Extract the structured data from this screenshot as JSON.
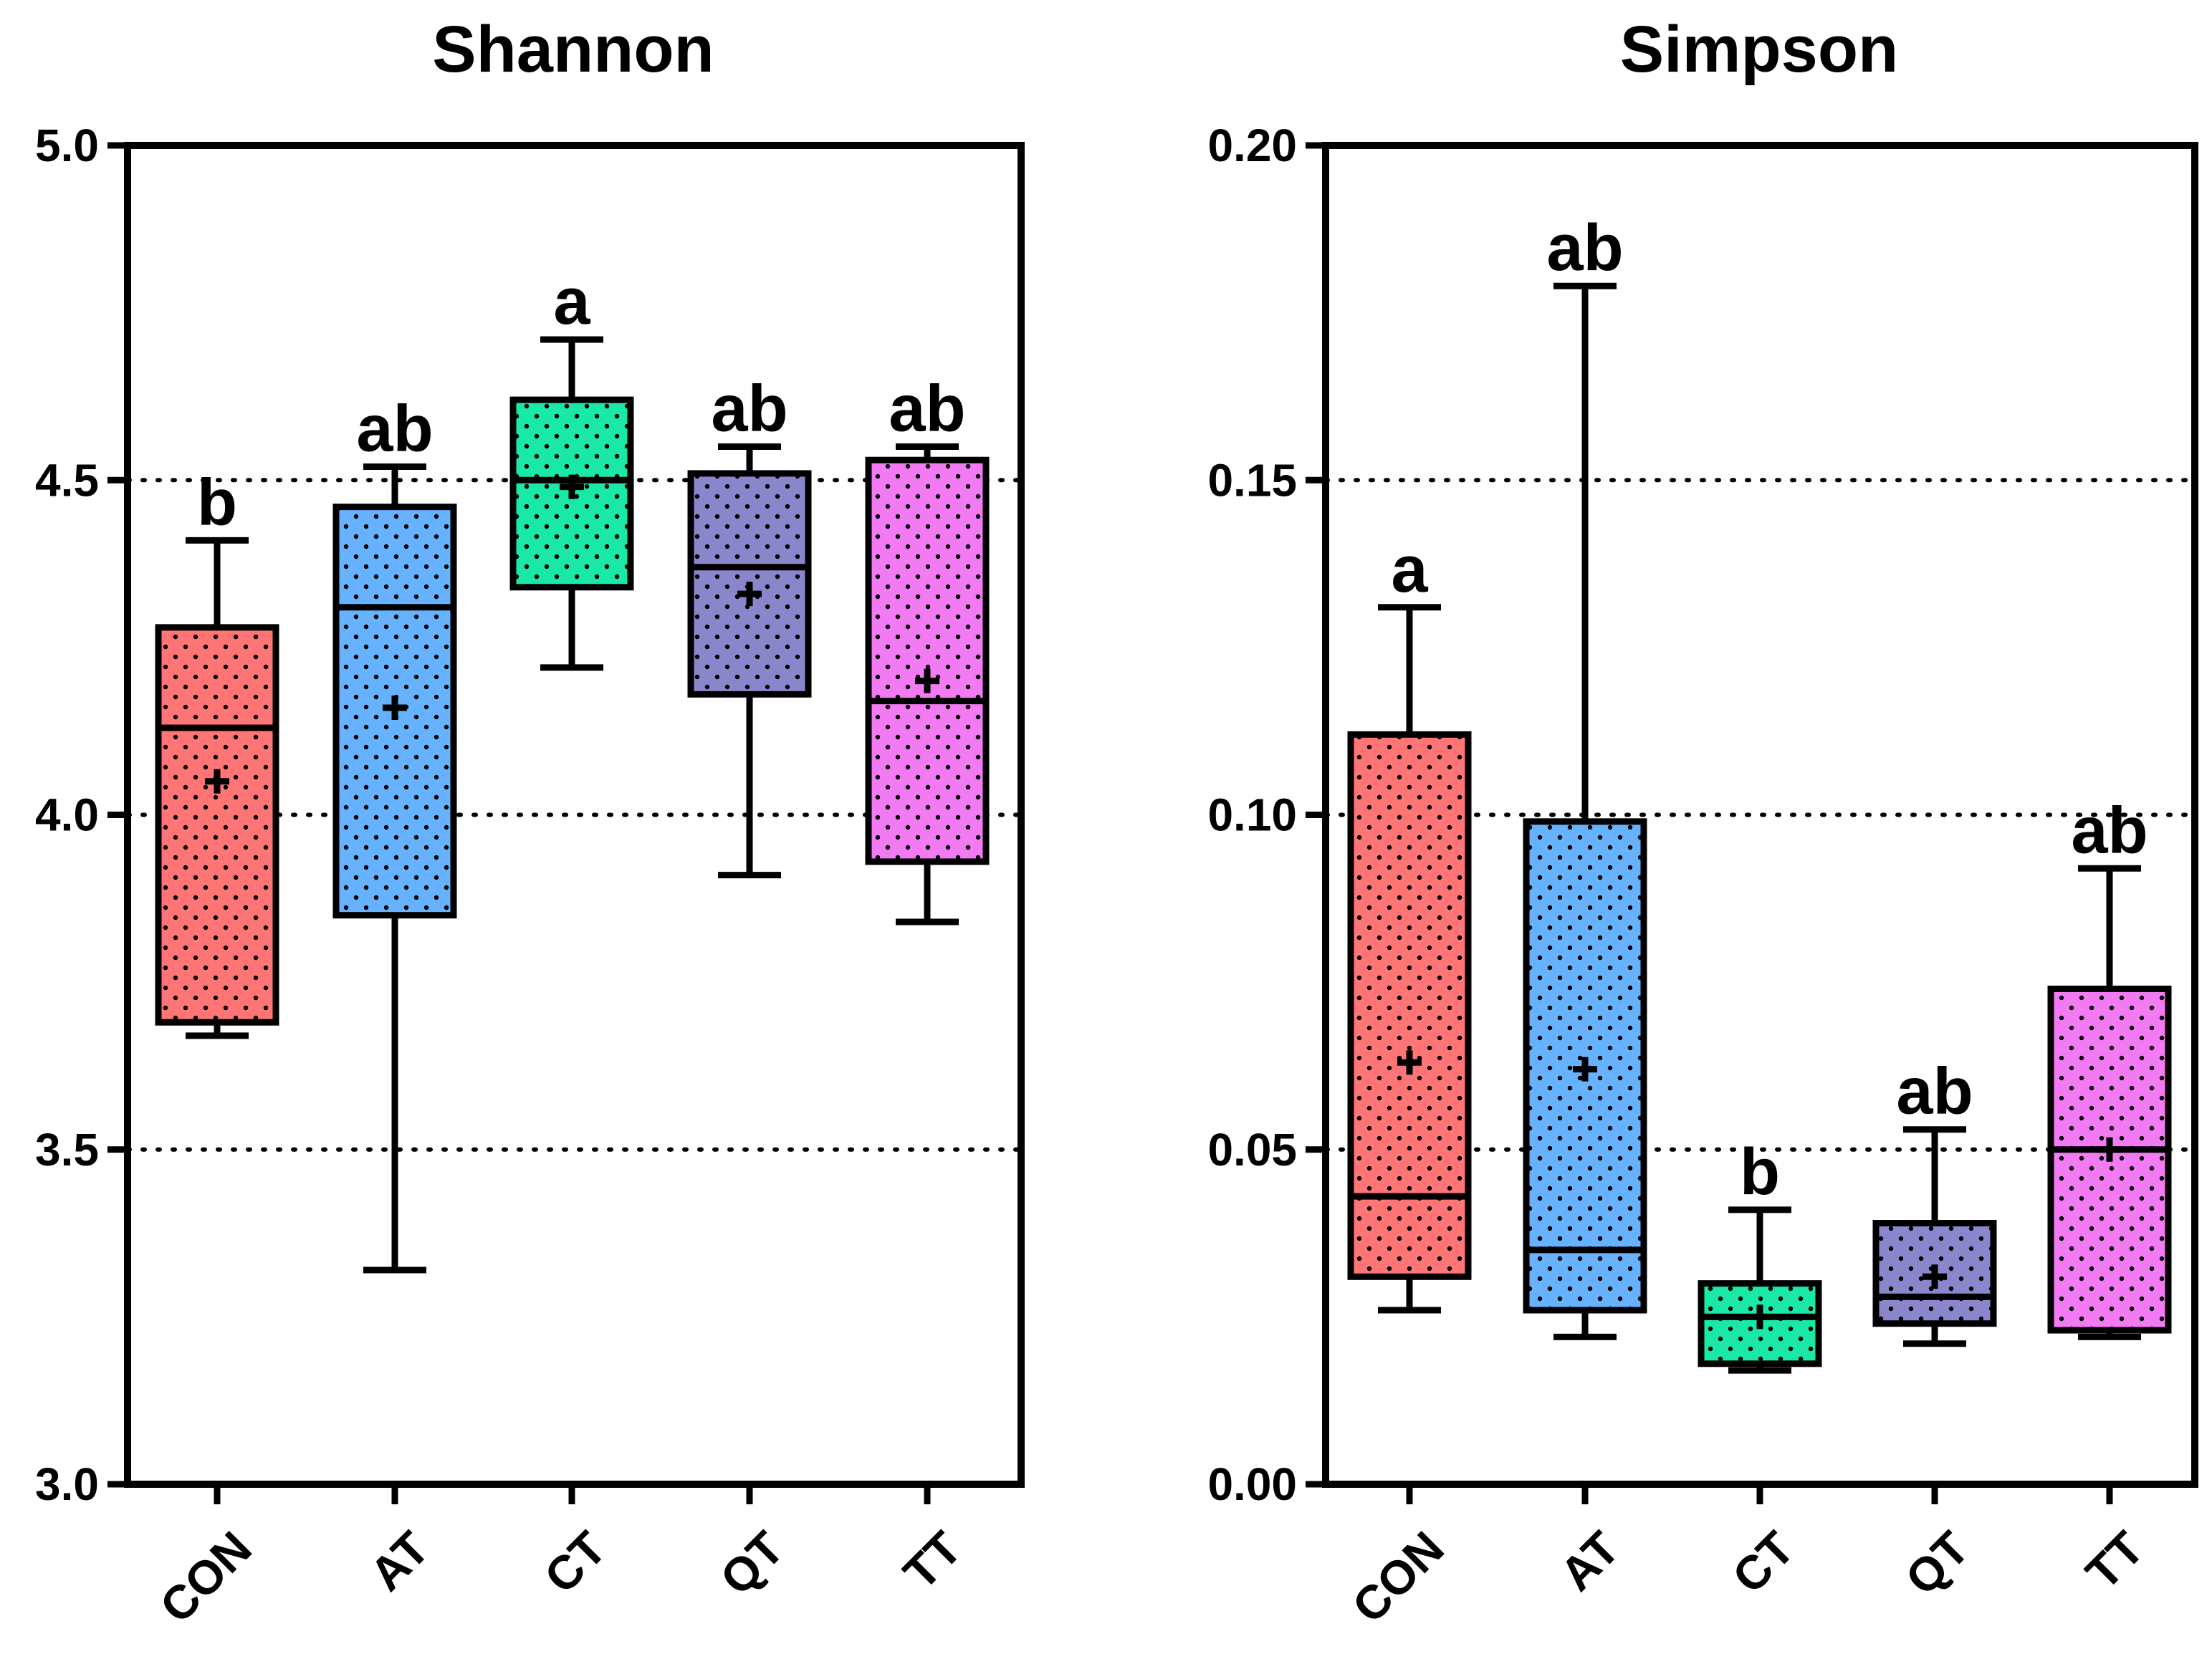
{
  "chart_data": [
    {
      "type": "box",
      "title": "Shannon",
      "xlabel": "",
      "ylabel": "",
      "ylim": [
        3.0,
        5.0
      ],
      "yticks": [
        "3.0",
        "3.5",
        "4.0",
        "4.5",
        "5.0"
      ],
      "ytick_values": [
        3.0,
        3.5,
        4.0,
        4.5,
        5.0
      ],
      "grid_lines": [
        3.5,
        4.0,
        4.5
      ],
      "categories": [
        "CON",
        "AT",
        "CT",
        "QT",
        "TT"
      ],
      "colors": [
        "#ff7474",
        "#66b2ff",
        "#19e8a6",
        "#8a86cc",
        "#f27af2"
      ],
      "boxes": [
        {
          "whisker_low": 3.67,
          "q1": 3.69,
          "median": 4.13,
          "q3": 4.28,
          "whisker_high": 4.41,
          "mean": 4.05,
          "significance": "b"
        },
        {
          "whisker_low": 3.32,
          "q1": 3.85,
          "median": 4.31,
          "q3": 4.46,
          "whisker_high": 4.52,
          "mean": 4.16,
          "significance": "ab"
        },
        {
          "whisker_low": 4.22,
          "q1": 4.34,
          "median": 4.5,
          "q3": 4.62,
          "whisker_high": 4.71,
          "mean": 4.49,
          "significance": "a"
        },
        {
          "whisker_low": 3.91,
          "q1": 4.18,
          "median": 4.37,
          "q3": 4.51,
          "whisker_high": 4.55,
          "mean": 4.33,
          "significance": "ab"
        },
        {
          "whisker_low": 3.84,
          "q1": 3.93,
          "median": 4.17,
          "q3": 4.53,
          "whisker_high": 4.55,
          "mean": 4.2,
          "significance": "ab"
        }
      ]
    },
    {
      "type": "box",
      "title": "Simpson",
      "xlabel": "",
      "ylabel": "",
      "ylim": [
        0.0,
        0.2
      ],
      "yticks": [
        "0.00",
        "0.05",
        "0.10",
        "0.15",
        "0.20"
      ],
      "ytick_values": [
        0.0,
        0.05,
        0.1,
        0.15,
        0.2
      ],
      "grid_lines": [
        0.05,
        0.1,
        0.15
      ],
      "categories": [
        "CON",
        "AT",
        "CT",
        "QT",
        "TT"
      ],
      "colors": [
        "#ff7474",
        "#66b2ff",
        "#19e8a6",
        "#8a86cc",
        "#f27af2"
      ],
      "boxes": [
        {
          "whisker_low": 0.026,
          "q1": 0.031,
          "median": 0.043,
          "q3": 0.112,
          "whisker_high": 0.131,
          "mean": 0.063,
          "significance": "a"
        },
        {
          "whisker_low": 0.022,
          "q1": 0.026,
          "median": 0.035,
          "q3": 0.099,
          "whisker_high": 0.179,
          "mean": 0.062,
          "significance": "ab"
        },
        {
          "whisker_low": 0.017,
          "q1": 0.018,
          "median": 0.025,
          "q3": 0.03,
          "whisker_high": 0.041,
          "mean": 0.025,
          "significance": "b"
        },
        {
          "whisker_low": 0.021,
          "q1": 0.024,
          "median": 0.028,
          "q3": 0.039,
          "whisker_high": 0.053,
          "mean": 0.031,
          "significance": "ab"
        },
        {
          "whisker_low": 0.022,
          "q1": 0.023,
          "median": 0.05,
          "q3": 0.074,
          "whisker_high": 0.092,
          "mean": 0.05,
          "significance": "ab"
        }
      ]
    }
  ]
}
